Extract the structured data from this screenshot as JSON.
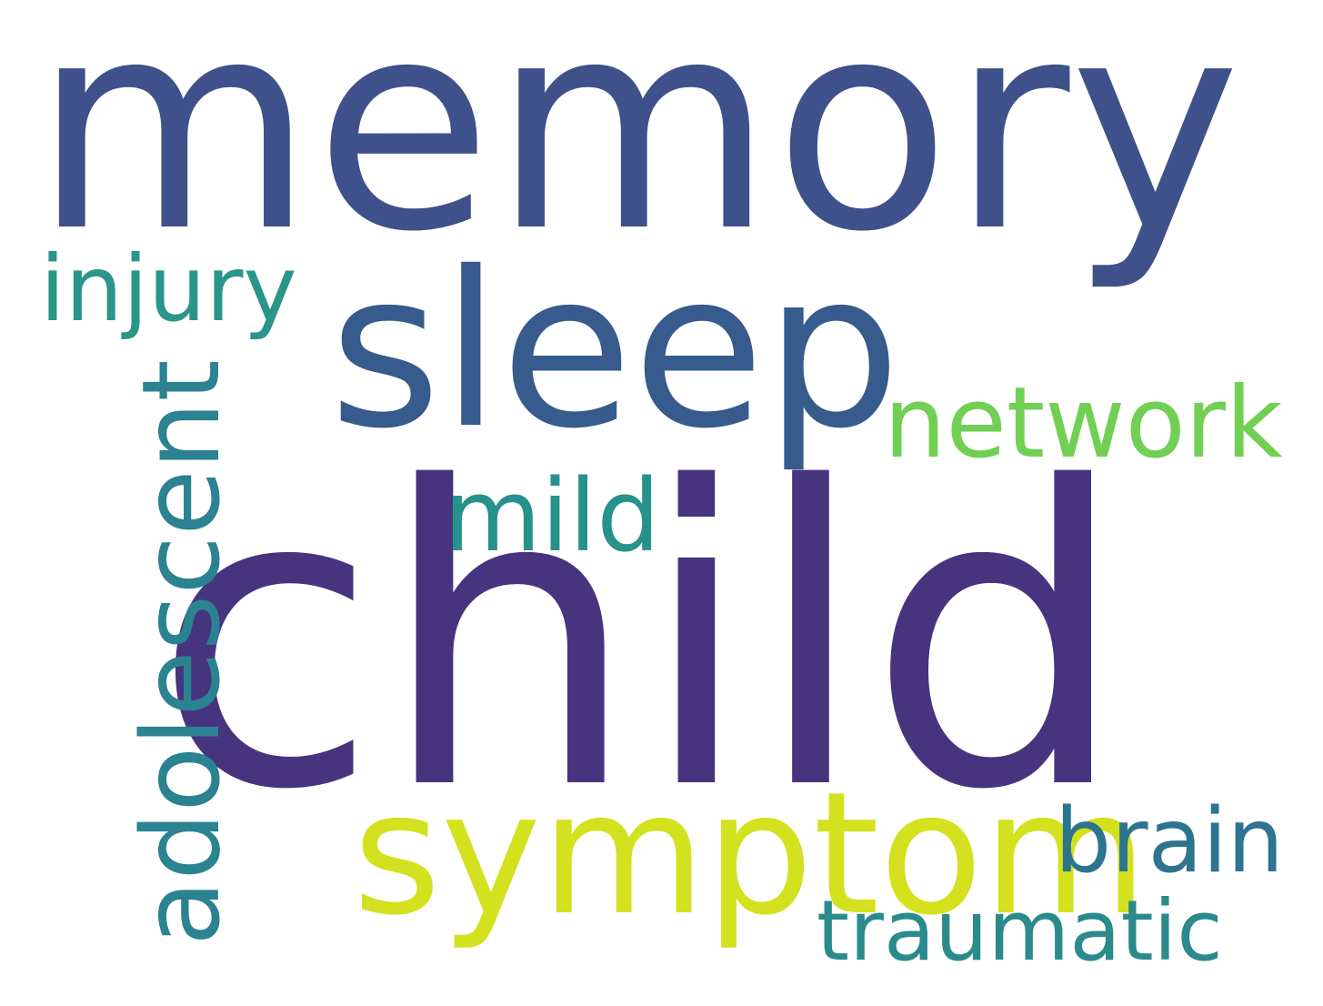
{
  "words": [
    {
      "text": "memory",
      "color": "#3f518a"
    },
    {
      "text": "child",
      "color": "#47347f"
    },
    {
      "text": "sleep",
      "color": "#365b8c"
    },
    {
      "text": "injury",
      "color": "#2a958a"
    },
    {
      "text": "network",
      "color": "#71d054"
    },
    {
      "text": "mild",
      "color": "#27918c"
    },
    {
      "text": "adolescent",
      "color": "#2b8290"
    },
    {
      "text": "symptom",
      "color": "#d3e11e"
    },
    {
      "text": "brain",
      "color": "#2d748e"
    },
    {
      "text": "traumatic",
      "color": "#2a8a8c"
    }
  ]
}
